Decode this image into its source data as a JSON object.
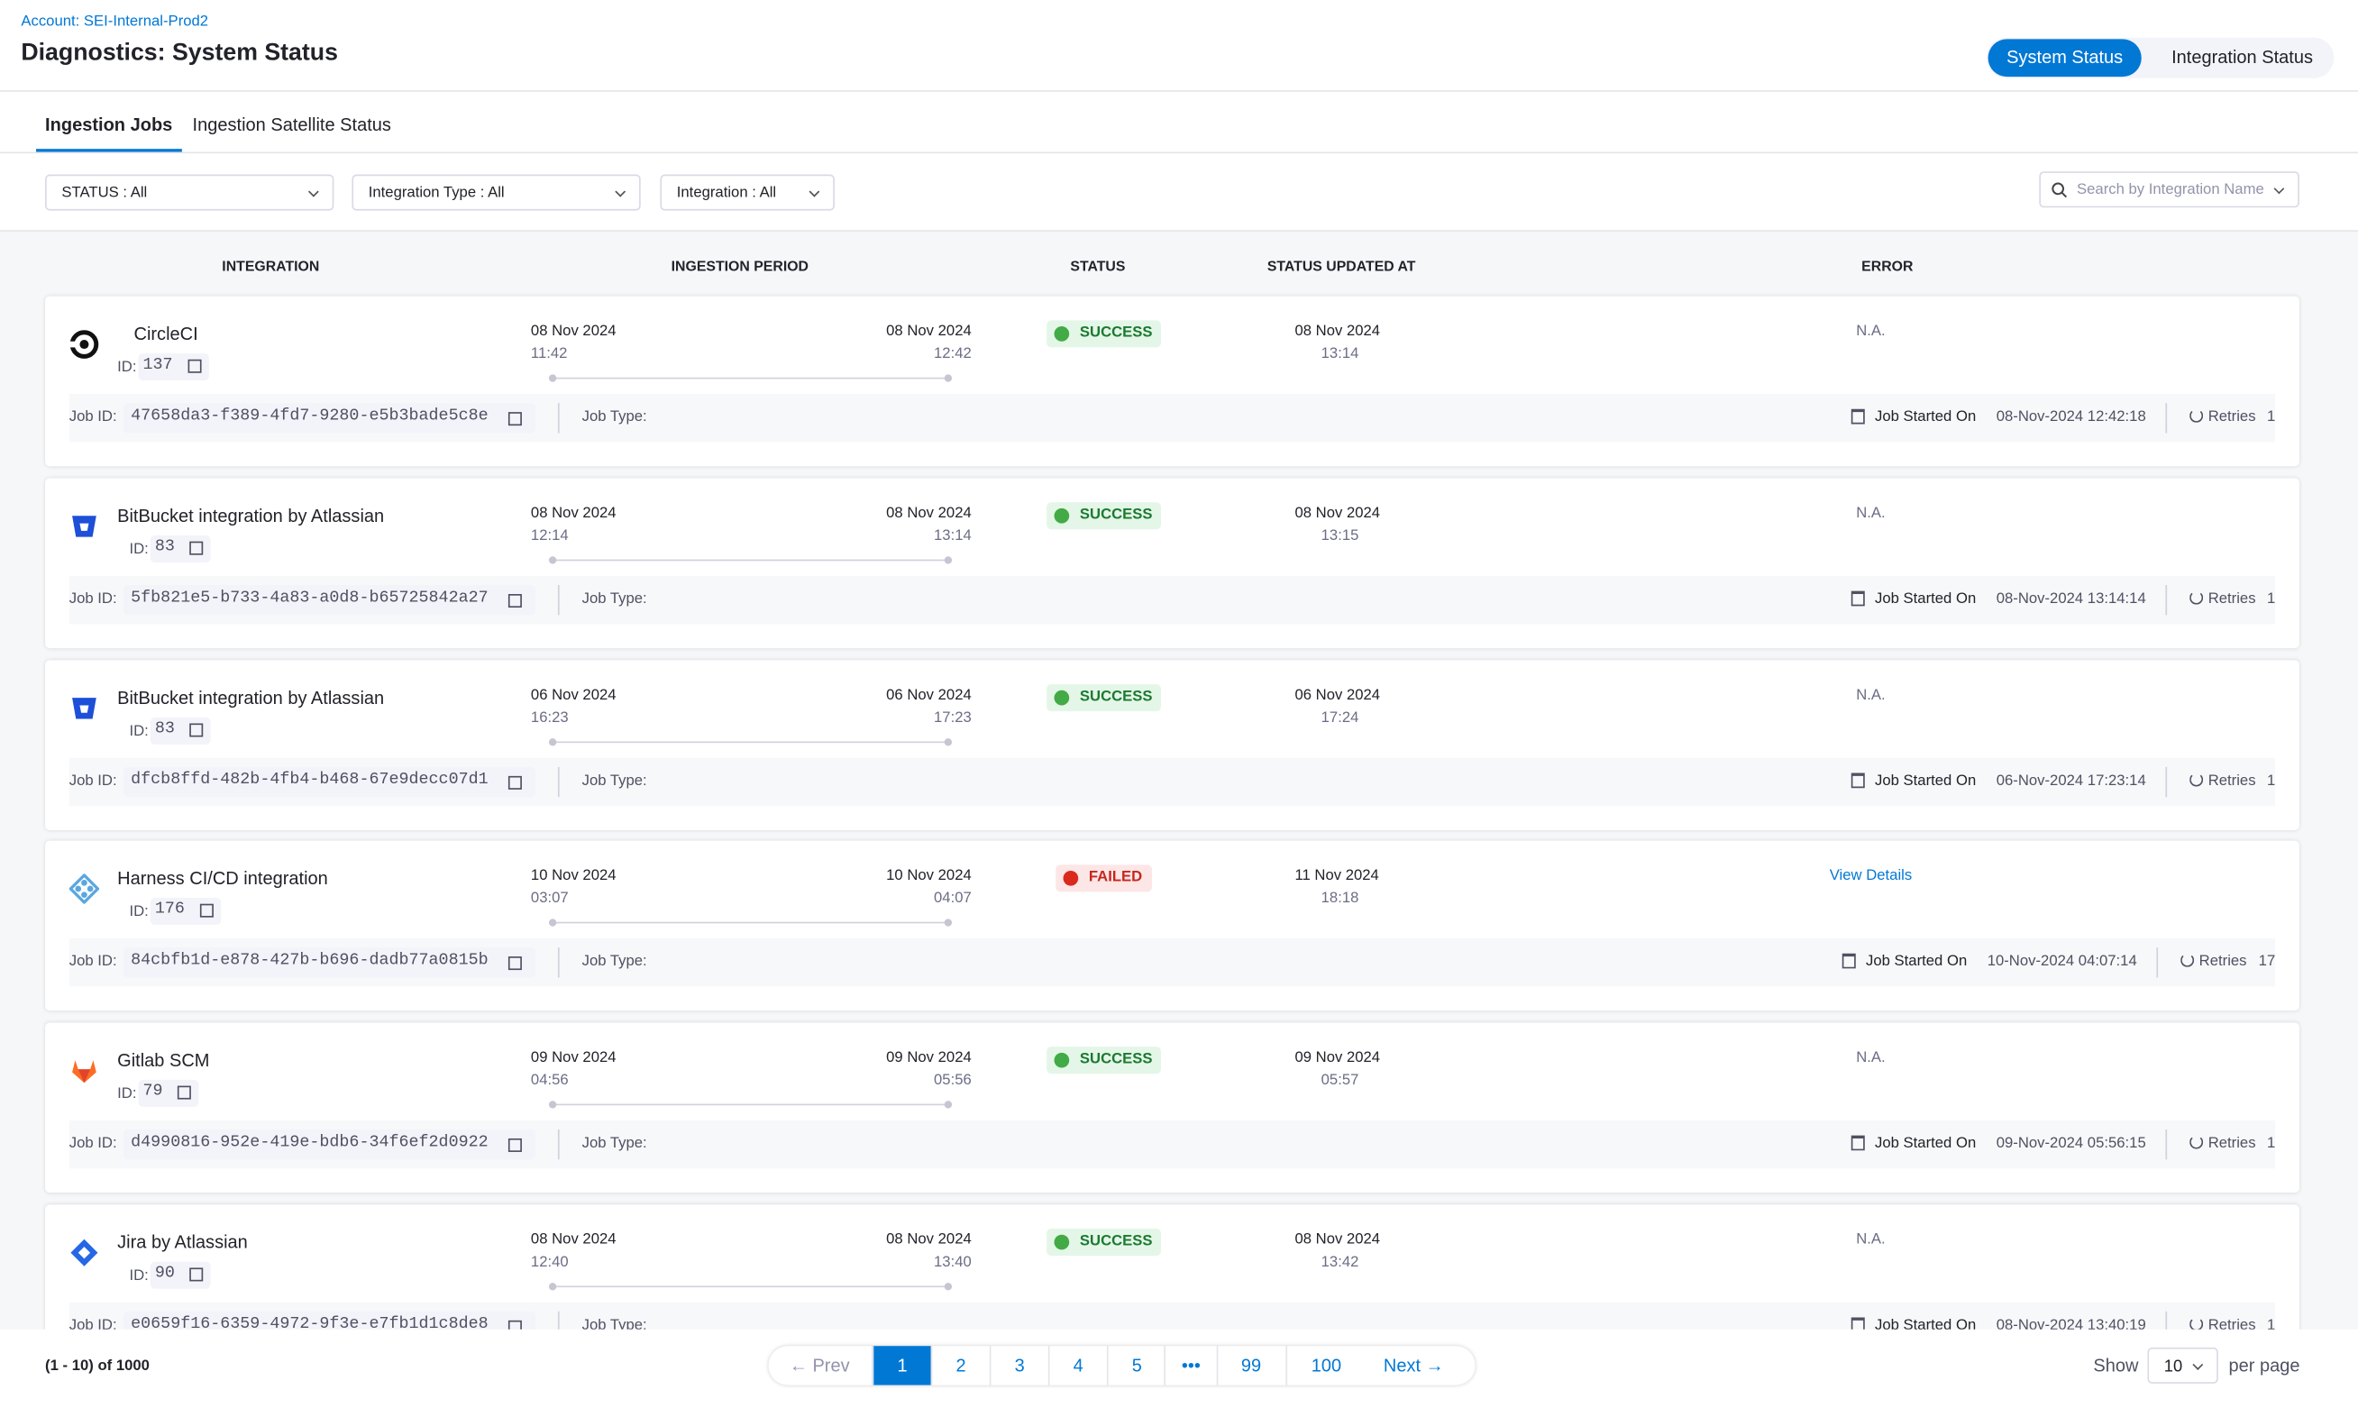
{
  "header": {
    "account": "Account: SEI-Internal-Prod2",
    "title": "Diagnostics: System Status",
    "toggle": [
      "System Status",
      "Integration Status"
    ]
  },
  "tabs": [
    "Ingestion Jobs",
    "Ingestion Satellite Status"
  ],
  "filters": [
    "STATUS : All",
    "Integration Type : All",
    "Integration : All"
  ],
  "search_placeholder": "Search by Integration Name",
  "columns": [
    "INTEGRATION",
    "INGESTION PERIOD",
    "STATUS",
    "STATUS UPDATED AT",
    "ERROR"
  ],
  "labels": {
    "id": "ID:",
    "job_id": "Job ID:",
    "job_type": "Job Type:",
    "started_on": "Job Started On",
    "retries": "Retries"
  },
  "rows": [
    {
      "name": "CircleCI",
      "id": "137",
      "start_date": "08 Nov 2024",
      "start_time": "11:42",
      "end_date": "08 Nov 2024",
      "end_time": "12:42",
      "status": "SUCCESS",
      "updated_date": "08 Nov 2024",
      "updated_time": "13:14",
      "error": "N.A.",
      "job_id": "47658da3-f389-4fd7-9280-e5b3bade5c8e",
      "started_on": "08-Nov-2024 12:42:18",
      "retries": "1"
    },
    {
      "name": "BitBucket integration by Atlassian",
      "id": "83",
      "start_date": "08 Nov 2024",
      "start_time": "12:14",
      "end_date": "08 Nov 2024",
      "end_time": "13:14",
      "status": "SUCCESS",
      "updated_date": "08 Nov 2024",
      "updated_time": "13:15",
      "error": "N.A.",
      "job_id": "5fb821e5-b733-4a83-a0d8-b65725842a27",
      "started_on": "08-Nov-2024 13:14:14",
      "retries": "1"
    },
    {
      "name": "BitBucket integration by Atlassian",
      "id": "83",
      "start_date": "06 Nov 2024",
      "start_time": "16:23",
      "end_date": "06 Nov 2024",
      "end_time": "17:23",
      "status": "SUCCESS",
      "updated_date": "06 Nov 2024",
      "updated_time": "17:24",
      "error": "N.A.",
      "job_id": "dfcb8ffd-482b-4fb4-b468-67e9decc07d1",
      "started_on": "06-Nov-2024 17:23:14",
      "retries": "1"
    },
    {
      "name": "Harness CI/CD integration",
      "id": "176",
      "start_date": "10 Nov 2024",
      "start_time": "03:07",
      "end_date": "10 Nov 2024",
      "end_time": "04:07",
      "status": "FAILED",
      "updated_date": "11 Nov 2024",
      "updated_time": "18:18",
      "error": "View Details",
      "job_id": "84cbfb1d-e878-427b-b696-dadb77a0815b",
      "started_on": "10-Nov-2024 04:07:14",
      "retries": "17"
    },
    {
      "name": "Gitlab SCM",
      "id": "79",
      "start_date": "09 Nov 2024",
      "start_time": "04:56",
      "end_date": "09 Nov 2024",
      "end_time": "05:56",
      "status": "SUCCESS",
      "updated_date": "09 Nov 2024",
      "updated_time": "05:57",
      "error": "N.A.",
      "job_id": "d4990816-952e-419e-bdb6-34f6ef2d0922",
      "started_on": "09-Nov-2024 05:56:15",
      "retries": "1"
    },
    {
      "name": "Jira by Atlassian",
      "id": "90",
      "start_date": "08 Nov 2024",
      "start_time": "12:40",
      "end_date": "08 Nov 2024",
      "end_time": "13:40",
      "status": "SUCCESS",
      "updated_date": "08 Nov 2024",
      "updated_time": "13:42",
      "error": "N.A.",
      "job_id": "e0659f16-6359-4972-9f3e-e7fb1d1c8de8",
      "started_on": "08-Nov-2024 13:40:19",
      "retries": "1"
    }
  ],
  "footer": {
    "range": "(1 - 10) of 1000",
    "prev": "← Prev",
    "pages": [
      "1",
      "2",
      "3",
      "4",
      "5",
      "•••",
      "99",
      "100"
    ],
    "next": "Next →",
    "show": "Show",
    "page_size": "10",
    "per_page": "per page"
  }
}
